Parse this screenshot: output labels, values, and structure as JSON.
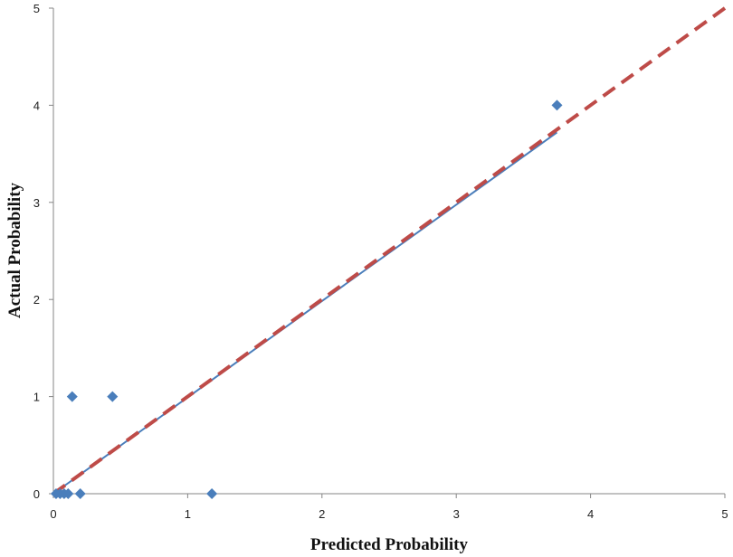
{
  "chart_data": {
    "type": "scatter",
    "title": "",
    "xlabel": "Predicted Probability",
    "ylabel": "Actual Probability",
    "xlim": [
      0,
      5
    ],
    "ylim": [
      0,
      5
    ],
    "x_ticks": [
      "0",
      "1",
      "2",
      "3",
      "4",
      "5"
    ],
    "y_ticks": [
      "0",
      "1",
      "2",
      "3",
      "4",
      "5"
    ],
    "grid": false,
    "legend": "none",
    "points": [
      {
        "x": 0.02,
        "y": 0
      },
      {
        "x": 0.05,
        "y": 0
      },
      {
        "x": 0.08,
        "y": 0
      },
      {
        "x": 0.11,
        "y": 0
      },
      {
        "x": 0.14,
        "y": 1
      },
      {
        "x": 0.2,
        "y": 0
      },
      {
        "x": 0.44,
        "y": 1
      },
      {
        "x": 1.18,
        "y": 0
      },
      {
        "x": 3.75,
        "y": 4
      }
    ],
    "fit_line": {
      "x": [
        0,
        3.75
      ],
      "y": [
        0,
        3.72
      ]
    },
    "reference_line": {
      "x": [
        0,
        5
      ],
      "y": [
        0,
        5
      ]
    },
    "colors": {
      "points": "#4a7ebb",
      "fit_line": "#4a7ebb",
      "reference_line": "#be4b48",
      "axis": "#868686"
    }
  }
}
